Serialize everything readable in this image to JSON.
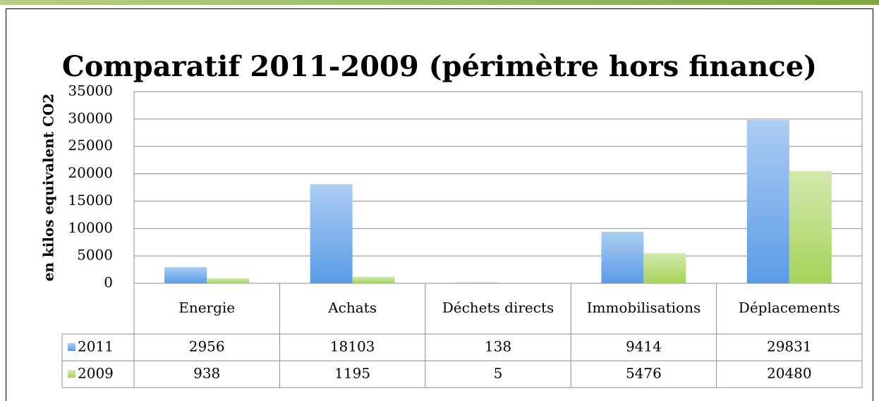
{
  "chart_data": {
    "type": "bar",
    "title": "Comparatif 2011-2009 (périmètre hors finance)",
    "y_label": "en kilos equivalent CO2",
    "categories": [
      "Energie",
      "Achats",
      "Déchets directs",
      "Immobilisations",
      "Déplacements"
    ],
    "series": [
      {
        "name": "2011",
        "color": "#5a9be6",
        "values": [
          2956,
          18103,
          138,
          9414,
          29831
        ]
      },
      {
        "name": "2009",
        "color": "#a6d35a",
        "values": [
          938,
          1195,
          5,
          5476,
          20480
        ]
      }
    ],
    "ylim": [
      0,
      35000
    ],
    "yticks": [
      0,
      5000,
      10000,
      15000,
      20000,
      25000,
      30000,
      35000
    ],
    "grid": true,
    "data_table": true
  }
}
